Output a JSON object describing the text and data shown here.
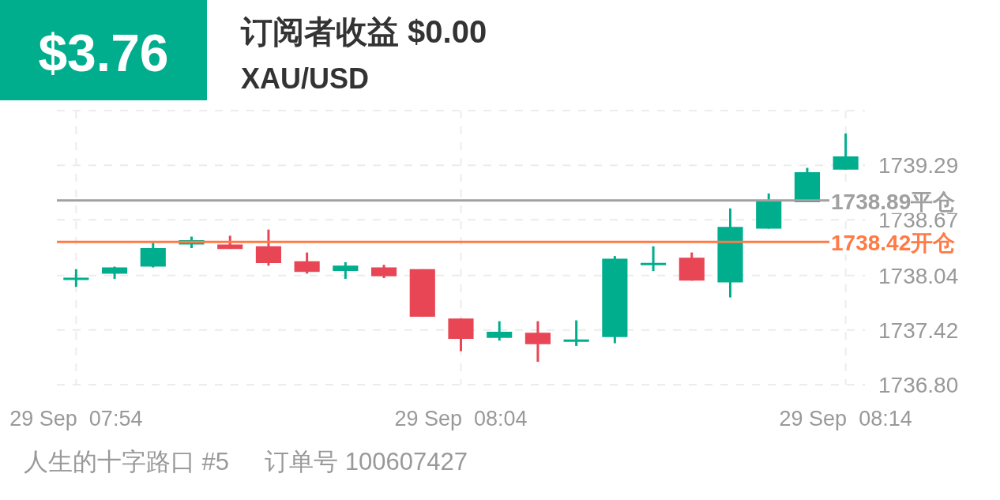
{
  "chart_data": {
    "type": "candlestick",
    "title": "订阅者收益 $0.00",
    "subtitle": "XAU/USD",
    "annotations": [
      "$3.76",
      "人生的十字路口 #5",
      "订单号 100607427"
    ],
    "categories": [
      "29 Sep  07:54",
      null,
      null,
      null,
      null,
      null,
      null,
      null,
      null,
      null,
      "29 Sep  08:04",
      null,
      null,
      null,
      null,
      null,
      null,
      null,
      null,
      null,
      "29 Sep  08:14"
    ],
    "ohlc": [
      [
        1738.0,
        1738.11,
        1737.91,
        1738.0
      ],
      [
        1738.06,
        1738.14,
        1738.0,
        1738.13
      ],
      [
        1738.14,
        1738.41,
        1738.13,
        1738.35
      ],
      [
        1738.39,
        1738.48,
        1738.35,
        1738.44
      ],
      [
        1738.39,
        1738.49,
        1738.34,
        1738.34
      ],
      [
        1738.37,
        1738.56,
        1738.15,
        1738.18
      ],
      [
        1738.2,
        1738.3,
        1738.06,
        1738.08
      ],
      [
        1738.09,
        1738.19,
        1738.0,
        1738.15
      ],
      [
        1738.13,
        1738.16,
        1738.01,
        1738.03
      ],
      [
        1738.11,
        1738.11,
        1737.57,
        1737.57
      ],
      [
        1737.55,
        1737.55,
        1737.18,
        1737.32
      ],
      [
        1737.33,
        1737.52,
        1737.3,
        1737.4
      ],
      [
        1737.39,
        1737.52,
        1737.06,
        1737.26
      ],
      [
        1737.3,
        1737.53,
        1737.24,
        1737.3
      ],
      [
        1737.34,
        1738.26,
        1737.27,
        1738.23
      ],
      [
        1738.17,
        1738.37,
        1738.09,
        1738.17
      ],
      [
        1738.24,
        1738.3,
        1737.98,
        1737.98
      ],
      [
        1737.96,
        1738.8,
        1737.79,
        1738.59
      ],
      [
        1738.57,
        1738.97,
        1738.57,
        1738.88
      ],
      [
        1738.87,
        1739.26,
        1738.87,
        1739.21
      ],
      [
        1739.24,
        1739.65,
        1739.24,
        1739.39
      ]
    ],
    "colors": [
      "#00ae8e",
      "#00ae8e",
      "#00ae8e",
      "#00ae8e",
      "#e84655",
      "#e84655",
      "#e84655",
      "#00ae8e",
      "#e84655",
      "#e84655",
      "#e84655",
      "#00ae8e",
      "#e84655",
      "#00ae8e",
      "#00ae8e",
      "#00ae8e",
      "#e84655",
      "#00ae8e",
      "#00ae8e",
      "#00ae8e",
      "#00ae8e"
    ],
    "ylim": [
      1736.8,
      1739.91
    ],
    "yticks": [
      {
        "value": 1736.8,
        "label": "1736.80"
      },
      1737.42,
      1738.04,
      1738.67,
      1739.29,
      {
        "value": 1739.91,
        "label": null
      }
    ],
    "ref_lines": [
      {
        "axis": "y",
        "value": 1738.89,
        "label": "1738.89平仓",
        "color": "#a0a0a0"
      },
      {
        "axis": "y",
        "value": 1738.42,
        "label": "1738.42开仓",
        "color": "#ff7a45"
      }
    ],
    "grid": true
  }
}
